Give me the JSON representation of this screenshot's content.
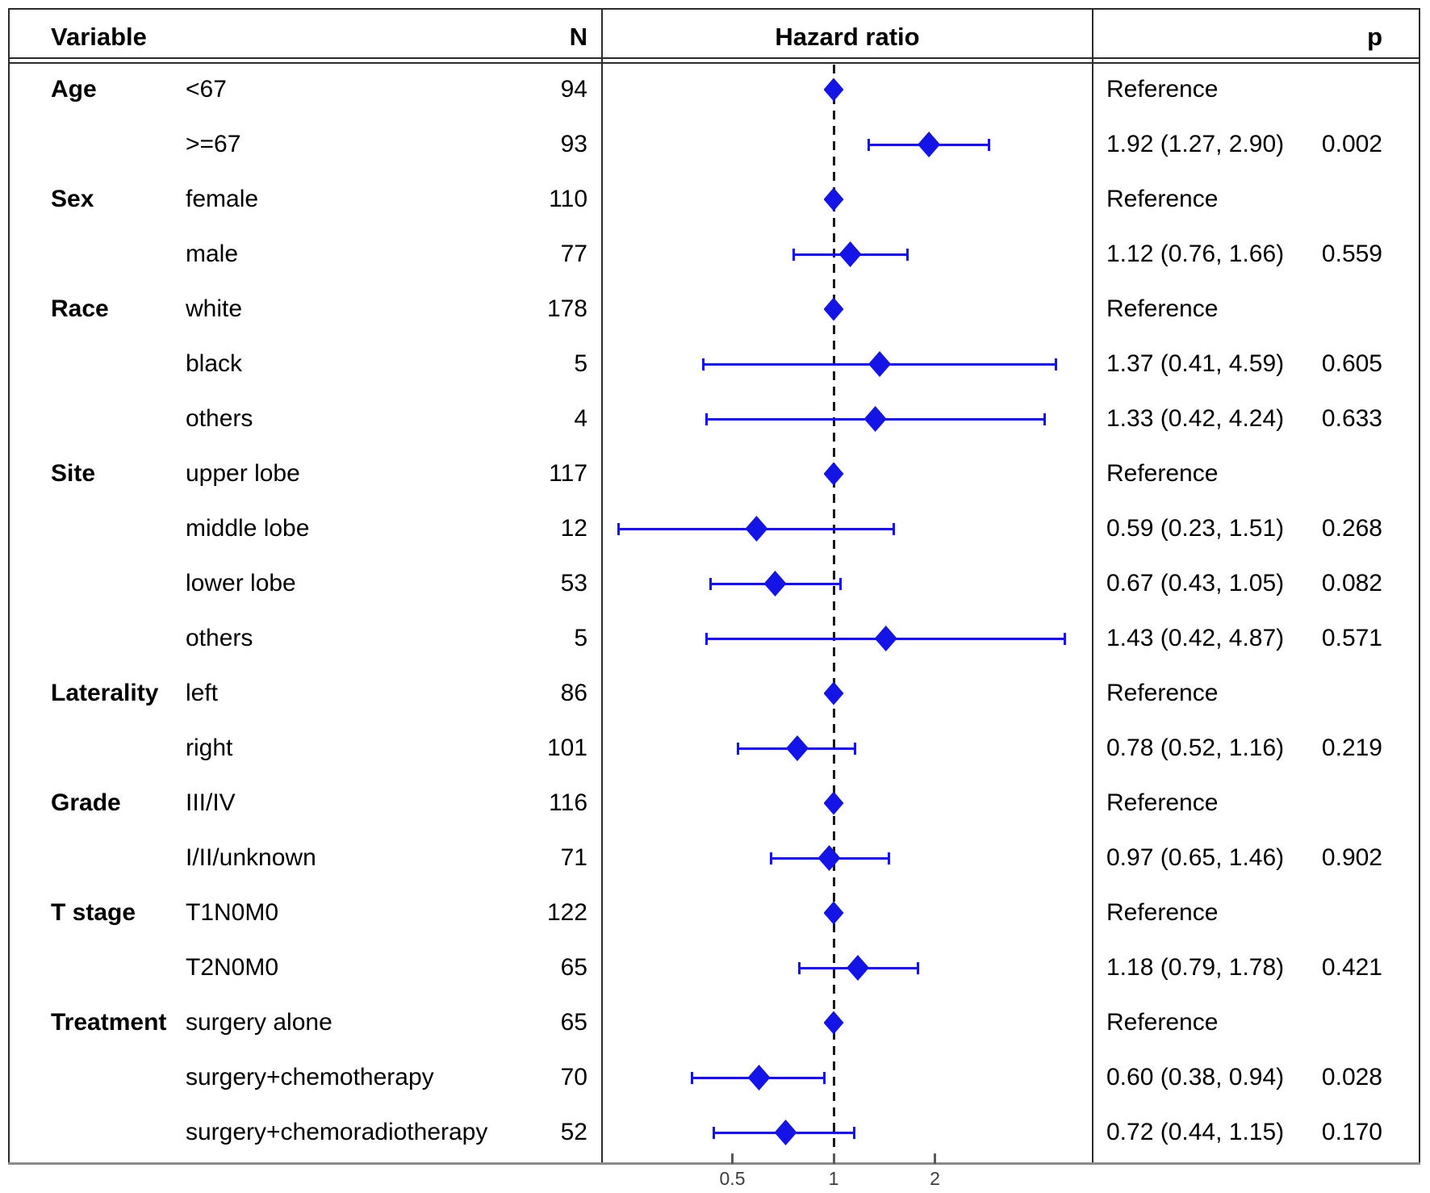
{
  "header": {
    "variable_label": "Variable",
    "n_label": "N",
    "hazard_ratio_label": "Hazard ratio",
    "p_label": "p"
  },
  "axis": {
    "scale": "log2",
    "tick_labels": [
      "0.5",
      "1",
      "2"
    ],
    "tick_values": [
      0.5,
      1,
      2
    ],
    "reference_value": 1
  },
  "colors": {
    "marker_blue": "#1414e6",
    "reference_line_black": "#191919",
    "axis_gray": "#8a8a8a",
    "border_black": "#2b2b2b",
    "tick_label_gray": "#3d3d3d"
  },
  "chart_data": {
    "type": "scatter",
    "subtype": "forest-plot",
    "title": "Hazard ratio",
    "x_scale": "log2",
    "x_ticks": [
      0.5,
      1,
      2
    ],
    "x_range": [
      0.2,
      5.6
    ],
    "reference_line": 1,
    "grid": false,
    "legend_position": "none",
    "rows": [
      {
        "group": "Age",
        "level": "<67",
        "n": "94",
        "is_reference": true,
        "hr": 1,
        "ci_low": null,
        "ci_high": null,
        "hr_text": "Reference",
        "p_text": ""
      },
      {
        "group": "",
        "level": ">=67",
        "n": "93",
        "is_reference": false,
        "hr": 1.92,
        "ci_low": 1.27,
        "ci_high": 2.9,
        "hr_text": "1.92 (1.27, 2.90)",
        "p_text": "0.002"
      },
      {
        "group": "Sex",
        "level": "female",
        "n": "110",
        "is_reference": true,
        "hr": 1,
        "ci_low": null,
        "ci_high": null,
        "hr_text": "Reference",
        "p_text": ""
      },
      {
        "group": "",
        "level": "male",
        "n": "77",
        "is_reference": false,
        "hr": 1.12,
        "ci_low": 0.76,
        "ci_high": 1.66,
        "hr_text": "1.12 (0.76, 1.66)",
        "p_text": "0.559"
      },
      {
        "group": "Race",
        "level": "white",
        "n": "178",
        "is_reference": true,
        "hr": 1,
        "ci_low": null,
        "ci_high": null,
        "hr_text": "Reference",
        "p_text": ""
      },
      {
        "group": "",
        "level": "black",
        "n": "5",
        "is_reference": false,
        "hr": 1.37,
        "ci_low": 0.41,
        "ci_high": 4.59,
        "hr_text": "1.37 (0.41, 4.59)",
        "p_text": "0.605"
      },
      {
        "group": "",
        "level": "others",
        "n": "4",
        "is_reference": false,
        "hr": 1.33,
        "ci_low": 0.42,
        "ci_high": 4.24,
        "hr_text": "1.33 (0.42, 4.24)",
        "p_text": "0.633"
      },
      {
        "group": "Site",
        "level": "upper lobe",
        "n": "117",
        "is_reference": true,
        "hr": 1,
        "ci_low": null,
        "ci_high": null,
        "hr_text": "Reference",
        "p_text": ""
      },
      {
        "group": "",
        "level": "middle lobe",
        "n": "12",
        "is_reference": false,
        "hr": 0.59,
        "ci_low": 0.23,
        "ci_high": 1.51,
        "hr_text": "0.59 (0.23, 1.51)",
        "p_text": "0.268"
      },
      {
        "group": "",
        "level": "lower lobe",
        "n": "53",
        "is_reference": false,
        "hr": 0.67,
        "ci_low": 0.43,
        "ci_high": 1.05,
        "hr_text": "0.67 (0.43, 1.05)",
        "p_text": "0.082"
      },
      {
        "group": "",
        "level": "others",
        "n": "5",
        "is_reference": false,
        "hr": 1.43,
        "ci_low": 0.42,
        "ci_high": 4.87,
        "hr_text": "1.43 (0.42, 4.87)",
        "p_text": "0.571"
      },
      {
        "group": "Laterality",
        "level": "left",
        "n": "86",
        "is_reference": true,
        "hr": 1,
        "ci_low": null,
        "ci_high": null,
        "hr_text": "Reference",
        "p_text": ""
      },
      {
        "group": "",
        "level": "right",
        "n": "101",
        "is_reference": false,
        "hr": 0.78,
        "ci_low": 0.52,
        "ci_high": 1.16,
        "hr_text": "0.78 (0.52, 1.16)",
        "p_text": "0.219"
      },
      {
        "group": "Grade",
        "level": "III/IV",
        "n": "116",
        "is_reference": true,
        "hr": 1,
        "ci_low": null,
        "ci_high": null,
        "hr_text": "Reference",
        "p_text": ""
      },
      {
        "group": "",
        "level": "I/II/unknown",
        "n": "71",
        "is_reference": false,
        "hr": 0.97,
        "ci_low": 0.65,
        "ci_high": 1.46,
        "hr_text": "0.97 (0.65, 1.46)",
        "p_text": "0.902"
      },
      {
        "group": "T stage",
        "level": "T1N0M0",
        "n": "122",
        "is_reference": true,
        "hr": 1,
        "ci_low": null,
        "ci_high": null,
        "hr_text": "Reference",
        "p_text": ""
      },
      {
        "group": "",
        "level": "T2N0M0",
        "n": "65",
        "is_reference": false,
        "hr": 1.18,
        "ci_low": 0.79,
        "ci_high": 1.78,
        "hr_text": "1.18 (0.79, 1.78)",
        "p_text": "0.421"
      },
      {
        "group": "Treatment",
        "level": "surgery alone",
        "n": "65",
        "is_reference": true,
        "hr": 1,
        "ci_low": null,
        "ci_high": null,
        "hr_text": "Reference",
        "p_text": ""
      },
      {
        "group": "",
        "level": "surgery+chemotherapy",
        "n": "70",
        "is_reference": false,
        "hr": 0.6,
        "ci_low": 0.38,
        "ci_high": 0.94,
        "hr_text": "0.60 (0.38, 0.94)",
        "p_text": "0.028"
      },
      {
        "group": "",
        "level": "surgery+chemoradiotherapy",
        "n": "52",
        "is_reference": false,
        "hr": 0.72,
        "ci_low": 0.44,
        "ci_high": 1.15,
        "hr_text": "0.72 (0.44, 1.15)",
        "p_text": "0.170"
      }
    ]
  }
}
